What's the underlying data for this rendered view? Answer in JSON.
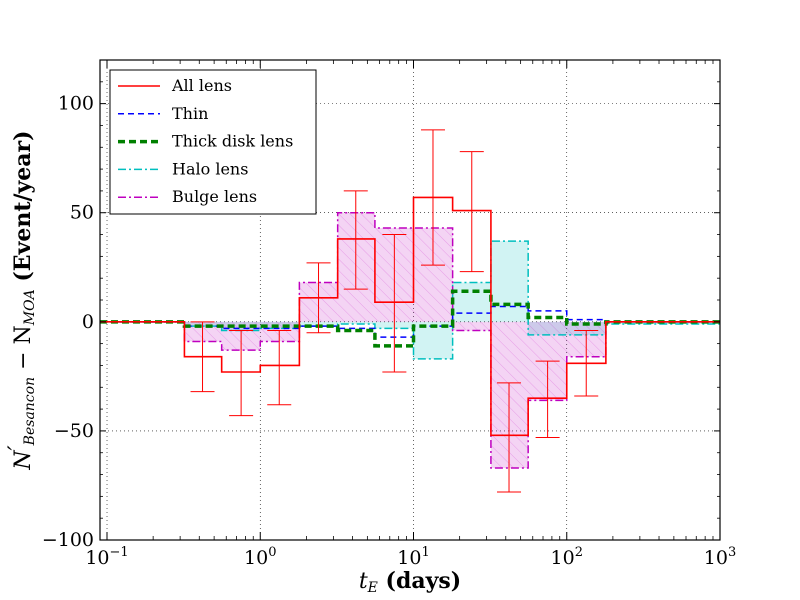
{
  "chart_data": {
    "type": "step",
    "x_scale": "log",
    "xlim": [
      0.09,
      1000
    ],
    "ylim": [
      -100,
      120
    ],
    "grid": true,
    "xlabel": "t_E (days)",
    "xlabel_main": "t",
    "xlabel_sub": "E",
    "xlabel_rest": " (days)",
    "ylabel_main": "N",
    "ylabel_prime": "′",
    "ylabel_sub1": "Besancon",
    "ylabel_minus": " − N",
    "ylabel_sub2": "MOA",
    "ylabel_rest": " (Event/year)",
    "y_ticks": [
      {
        "value": -100,
        "label": "−100"
      },
      {
        "value": -50,
        "label": "−50"
      },
      {
        "value": 0,
        "label": "0"
      },
      {
        "value": 50,
        "label": "50"
      },
      {
        "value": 100,
        "label": "100"
      }
    ],
    "x_ticks": [
      {
        "value": 0.1,
        "base": "10",
        "exp": "−1"
      },
      {
        "value": 1,
        "base": "10",
        "exp": "0"
      },
      {
        "value": 10,
        "base": "10",
        "exp": "1"
      },
      {
        "value": 100,
        "base": "10",
        "exp": "2"
      },
      {
        "value": 1000,
        "base": "10",
        "exp": "3"
      }
    ],
    "bin_edges": [
      0.09,
      0.18,
      0.32,
      0.56,
      1.0,
      1.8,
      3.2,
      5.6,
      10,
      18,
      32,
      56,
      100,
      180,
      1000
    ],
    "series": [
      {
        "name": "Halo lens",
        "key": "halo",
        "color": "#00bfbf",
        "dash": "8,3,2,3",
        "width": 1.5,
        "fill": "rgba(0,191,191,0.18)",
        "values": [
          0,
          0,
          -2,
          -4,
          -3,
          -2,
          -1,
          -3,
          -17,
          18,
          37,
          -6,
          -6,
          -1,
          0
        ]
      },
      {
        "name": "Bulge lens",
        "key": "bulge",
        "color": "#bf00bf",
        "dash": "8,3,2,3",
        "width": 1.5,
        "fill": "rgba(191,0,191,0.17)",
        "values": [
          0,
          0,
          -9,
          -13,
          -9,
          18,
          50,
          43,
          43,
          -4,
          -67,
          -36,
          -16,
          0,
          0
        ]
      },
      {
        "name": "Thin",
        "key": "thin",
        "color": "#0000ff",
        "dash": "6,4",
        "width": 1.5,
        "fill": "none",
        "values": [
          0,
          0,
          -2,
          -3,
          -3,
          -2,
          -3,
          -7,
          -2,
          4,
          7,
          5,
          1,
          0,
          0
        ]
      },
      {
        "name": "Thick disk lens",
        "key": "thick",
        "color": "#008000",
        "dash": "7,4",
        "width": 3.5,
        "fill": "none",
        "values": [
          0,
          0,
          -2,
          -2,
          -2,
          -2,
          -4,
          -11,
          -2,
          14,
          8,
          2,
          -1,
          0,
          0
        ]
      },
      {
        "name": "All lens",
        "key": "all",
        "color": "#ff0000",
        "dash": "",
        "width": 1.6,
        "fill": "none",
        "values": [
          0,
          0,
          -16,
          -23,
          -20,
          11,
          38,
          9,
          57,
          51,
          -52,
          -35,
          -19,
          0,
          0
        ]
      }
    ],
    "error_bars": [
      {
        "x": 0.42,
        "low": -32,
        "high": 0
      },
      {
        "x": 0.75,
        "low": -43,
        "high": -4
      },
      {
        "x": 1.33,
        "low": -38,
        "high": -4
      },
      {
        "x": 2.4,
        "low": -5,
        "high": 27
      },
      {
        "x": 4.2,
        "low": 15,
        "high": 60
      },
      {
        "x": 7.5,
        "low": -23,
        "high": 40
      },
      {
        "x": 13.4,
        "low": 26,
        "high": 88
      },
      {
        "x": 24,
        "low": 23,
        "high": 78
      },
      {
        "x": 42,
        "low": -78,
        "high": -28
      },
      {
        "x": 75,
        "low": -53,
        "high": -18
      },
      {
        "x": 134,
        "low": -34,
        "high": -4
      }
    ],
    "legend": {
      "position": "top-left",
      "entries": [
        {
          "name": "All lens",
          "color": "#ff0000",
          "dash": "",
          "width": 1.6
        },
        {
          "name": "Thin",
          "color": "#0000ff",
          "dash": "6,4",
          "width": 1.5
        },
        {
          "name": "Thick disk lens",
          "color": "#008000",
          "dash": "7,4",
          "width": 3.5
        },
        {
          "name": "Halo lens",
          "color": "#00bfbf",
          "dash": "8,3,2,3",
          "width": 1.5
        },
        {
          "name": "Bulge lens",
          "color": "#bf00bf",
          "dash": "8,3,2,3",
          "width": 1.5
        }
      ]
    }
  }
}
